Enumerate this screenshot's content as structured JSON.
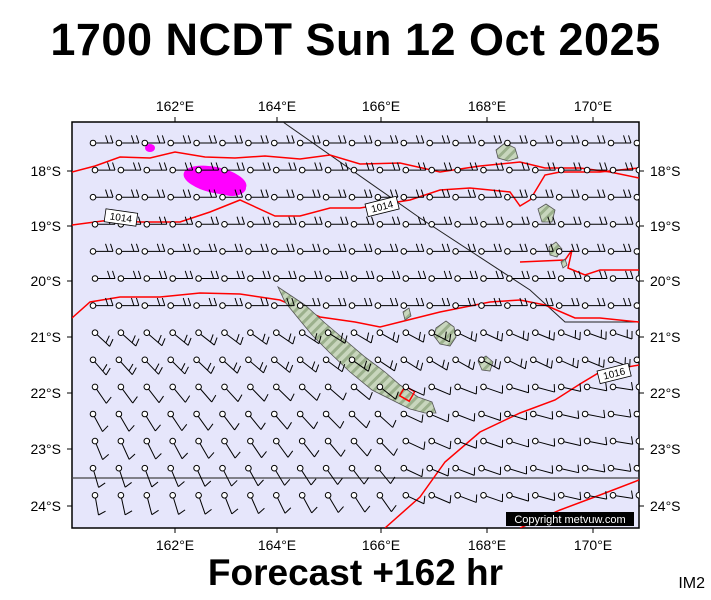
{
  "header": {
    "title": "1700 NCDT Sun 12 Oct 2025"
  },
  "footer": {
    "forecast": "Forecast +162 hr",
    "code": "IM2"
  },
  "map": {
    "lon_labels": [
      "162°E",
      "164°E",
      "166°E",
      "168°E",
      "170°E"
    ],
    "lat_labels": [
      "18°S",
      "19°S",
      "20°S",
      "21°S",
      "22°S",
      "23°S",
      "24°S"
    ],
    "isobar_labels": [
      "1014",
      "1014",
      "1016"
    ],
    "copyright": "Copyright metvuw.com",
    "colors": {
      "ocean": "#e6e6fb",
      "isobar": "#ff0000",
      "precip": "#ff00ff",
      "land_fill": "#c8d6bd",
      "land_stripe": "#9bb08c",
      "wind_barb": "#000000",
      "boundary": "#333333"
    }
  }
}
